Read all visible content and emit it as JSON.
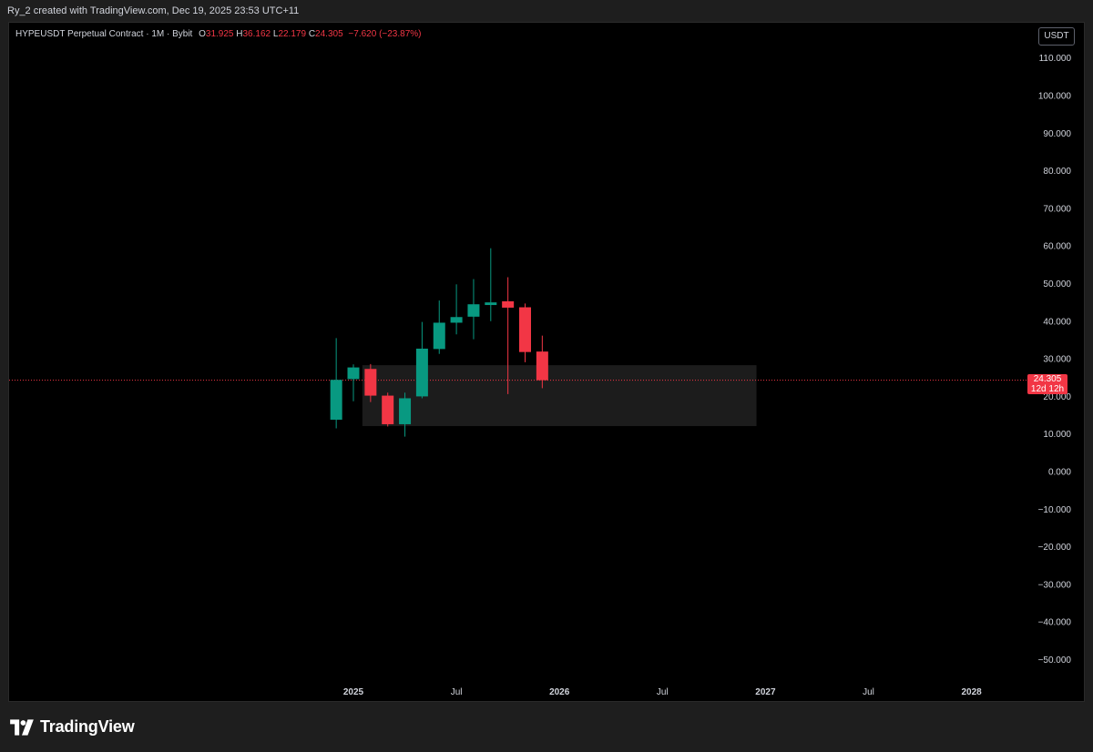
{
  "header": {
    "attribution": "Ry_2 created with TradingView.com, Dec 19, 2025 23:53 UTC+11"
  },
  "legend": {
    "symbol": "HYPEUSDT Perpetual Contract · 1M · Bybit",
    "open_label": "O",
    "open": "31.925",
    "high_label": "H",
    "high": "36.162",
    "low_label": "L",
    "low": "22.179",
    "close_label": "C",
    "close": "24.305",
    "change": "−7.620 (−23.87%)"
  },
  "currency_button": "USDT",
  "last_price": {
    "value": "24.305",
    "countdown": "12d 12h"
  },
  "footer": {
    "brand": "TradingView"
  },
  "colors": {
    "up": "#089981",
    "down": "#f23645",
    "background": "#000000",
    "zone": "#1c1c1c"
  },
  "chart_data": {
    "type": "candlestick",
    "ylim": [
      -55,
      115
    ],
    "y_ticks": [
      "110.000",
      "100.000",
      "90.000",
      "80.000",
      "70.000",
      "60.000",
      "50.000",
      "40.000",
      "30.000",
      "20.000",
      "10.000",
      "0.000",
      "−10.000",
      "−20.000",
      "−30.000",
      "−40.000",
      "−50.000"
    ],
    "y_tick_values": [
      110,
      100,
      90,
      80,
      70,
      60,
      50,
      40,
      30,
      20,
      10,
      0,
      -10,
      -20,
      -30,
      -40,
      -50
    ],
    "x_ticks": [
      {
        "label": "2025",
        "date": "2025-01"
      },
      {
        "label": "Jul",
        "date": "2025-07"
      },
      {
        "label": "2026",
        "date": "2026-01"
      },
      {
        "label": "Jul",
        "date": "2026-07"
      },
      {
        "label": "2027",
        "date": "2027-01"
      },
      {
        "label": "Jul",
        "date": "2027-07"
      },
      {
        "label": "2028",
        "date": "2028-01"
      }
    ],
    "candles": [
      {
        "date": "2024-12",
        "o": 13.8,
        "h": 35.5,
        "l": 11.5,
        "c": 24.4
      },
      {
        "date": "2025-01",
        "o": 24.6,
        "h": 28.5,
        "l": 18.7,
        "c": 27.7
      },
      {
        "date": "2025-02",
        "o": 27.3,
        "h": 28.6,
        "l": 18.5,
        "c": 20.2
      },
      {
        "date": "2025-03",
        "o": 20.2,
        "h": 21.0,
        "l": 12.0,
        "c": 12.6
      },
      {
        "date": "2025-04",
        "o": 12.6,
        "h": 21.0,
        "l": 9.3,
        "c": 19.5
      },
      {
        "date": "2025-05",
        "o": 20.0,
        "h": 39.8,
        "l": 19.5,
        "c": 32.7
      },
      {
        "date": "2025-06",
        "o": 32.6,
        "h": 45.5,
        "l": 31.3,
        "c": 39.6
      },
      {
        "date": "2025-07",
        "o": 39.6,
        "h": 49.8,
        "l": 36.5,
        "c": 41.1
      },
      {
        "date": "2025-08",
        "o": 41.2,
        "h": 51.2,
        "l": 35.2,
        "c": 44.5
      },
      {
        "date": "2025-09",
        "o": 44.3,
        "h": 59.4,
        "l": 40.0,
        "c": 45.0
      },
      {
        "date": "2025-10",
        "o": 45.3,
        "h": 51.7,
        "l": 20.6,
        "c": 43.6
      },
      {
        "date": "2025-11",
        "o": 43.7,
        "h": 44.7,
        "l": 29.1,
        "c": 31.8
      },
      {
        "date": "2025-12",
        "o": 31.925,
        "h": 36.162,
        "l": 22.179,
        "c": 24.305
      }
    ],
    "zone": {
      "from": "2025-02",
      "to": "2026-12",
      "top": 28.3,
      "bottom": 12.1
    },
    "last_price_line": 24.305
  }
}
